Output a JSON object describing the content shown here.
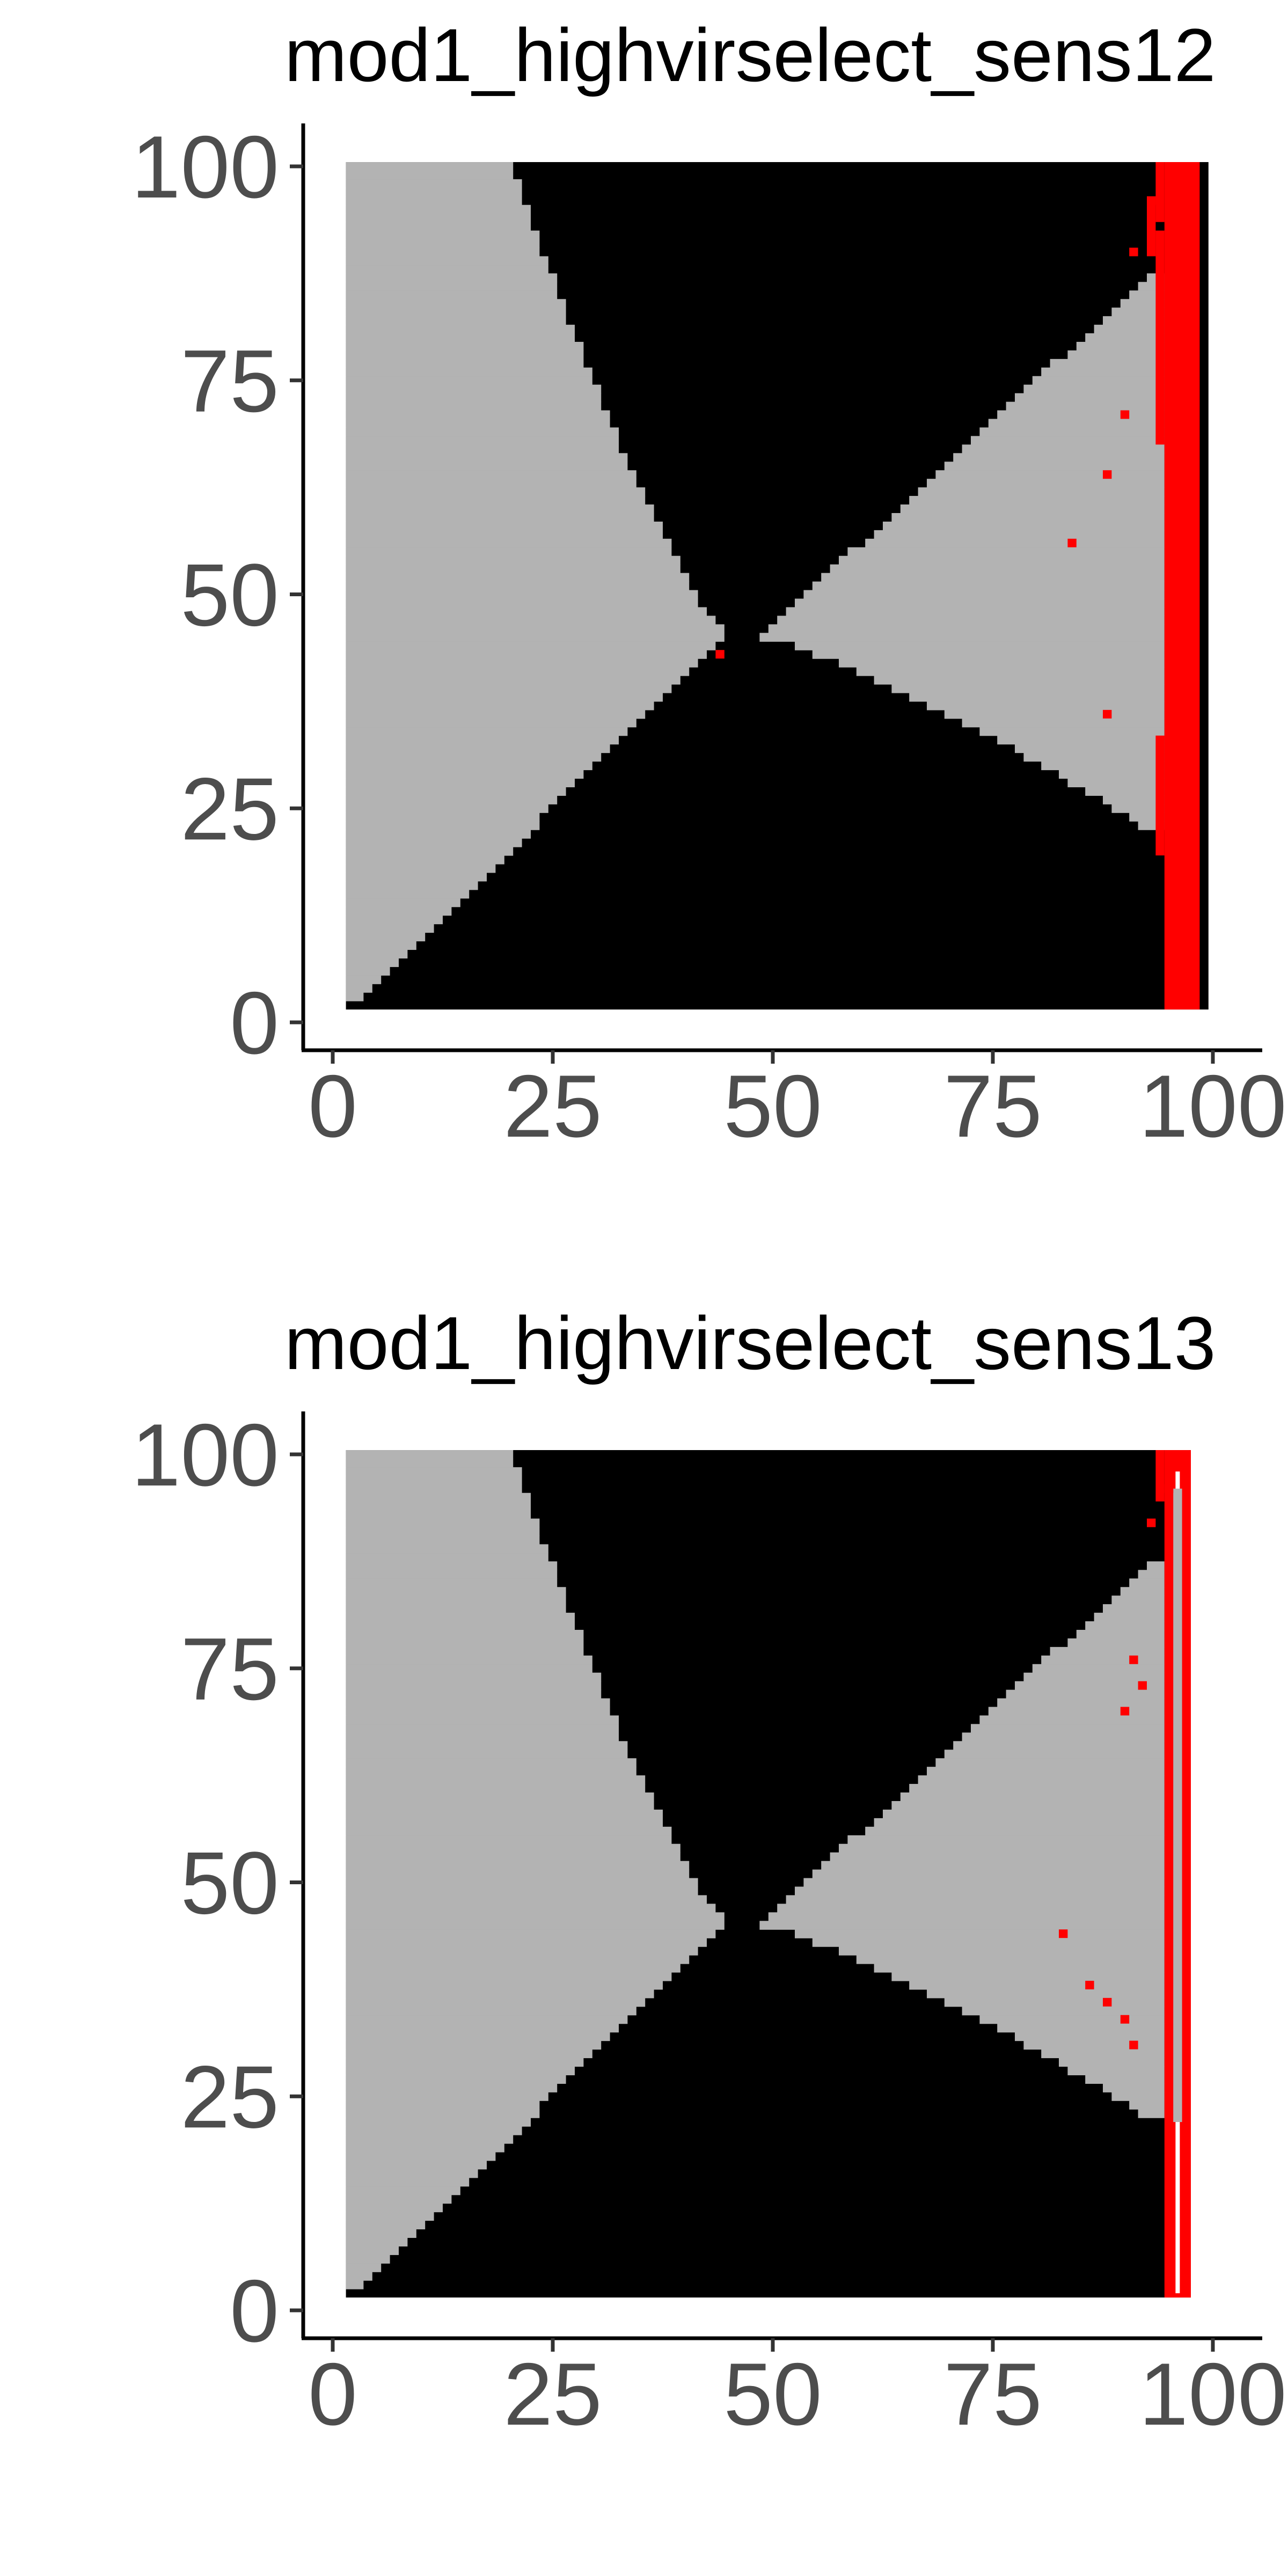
{
  "chart_data": [
    {
      "type": "heatmap",
      "title": "mod1_highvirselect_sens12",
      "xlabel": "",
      "ylabel": "",
      "xlim": [
        0,
        100
      ],
      "ylim": [
        0,
        100
      ],
      "x_ticks": [
        0,
        25,
        50,
        75,
        100
      ],
      "y_ticks": [
        0,
        25,
        50,
        75,
        100
      ],
      "x_tick_labels": [
        "0",
        "25",
        "50",
        "75",
        "100"
      ],
      "y_tick_labels": [
        "0",
        "25",
        "50",
        "75",
        "100"
      ],
      "grid": false,
      "legend": "none",
      "grid_extent": {
        "x": [
          2,
          99
        ],
        "y": [
          2,
          100
        ]
      },
      "colors": {
        "grey": "#b3b3b3",
        "black": "#000000",
        "red": "#ff0000",
        "white": "#ffffff"
      },
      "regions": [
        {
          "color": "grey",
          "x_edge": [
            [
              2,
              20
            ],
            [
              43,
              44
            ],
            [
              93,
              94
            ],
            [
              100,
              94
            ]
          ],
          "description_key": "left wedge"
        },
        {
          "color": "grey",
          "right_wedge": {
            "tip": [
              49,
              45
            ],
            "top": [
              94,
              88
            ],
            "bottom": [
              94,
              22
            ]
          }
        },
        {
          "color": "red",
          "column_x": [
            95,
            99
          ],
          "y_range": [
            20,
            100
          ]
        },
        {
          "color": "red",
          "points": [
            [
              44,
              43
            ],
            [
              84,
              56
            ],
            [
              88,
              64
            ],
            [
              90,
              71
            ],
            [
              88,
              36
            ],
            [
              93,
              96
            ],
            [
              91,
              90
            ]
          ]
        }
      ]
    },
    {
      "type": "heatmap",
      "title": "mod1_highvirselect_sens13",
      "xlabel": "",
      "ylabel": "",
      "xlim": [
        0,
        100
      ],
      "ylim": [
        0,
        100
      ],
      "x_ticks": [
        0,
        25,
        50,
        75,
        100
      ],
      "y_ticks": [
        0,
        25,
        50,
        75,
        100
      ],
      "x_tick_labels": [
        "0",
        "25",
        "50",
        "75",
        "100"
      ],
      "y_tick_labels": [
        "0",
        "25",
        "50",
        "75",
        "100"
      ],
      "grid": false,
      "legend": "none",
      "grid_extent": {
        "x": [
          2,
          97
        ],
        "y": [
          2,
          100
        ]
      },
      "colors": {
        "grey": "#b3b3b3",
        "black": "#000000",
        "red": "#ff0000",
        "white": "#ffffff"
      },
      "regions": [
        {
          "color": "grey",
          "x_edge": [
            [
              2,
              20
            ],
            [
              45,
              46
            ],
            [
              93,
              94
            ],
            [
              100,
              94
            ]
          ],
          "description_key": "left wedge"
        },
        {
          "color": "grey",
          "right_wedge": {
            "tip": [
              49,
              45
            ],
            "top": [
              94,
              88
            ],
            "bottom": [
              94,
              22
            ]
          }
        },
        {
          "color": "red",
          "column_x": [
            95,
            97
          ],
          "y_range": [
            2,
            100
          ],
          "white_stripes": true
        },
        {
          "color": "red",
          "points": [
            [
              83,
              44
            ],
            [
              86,
              38
            ],
            [
              88,
              36
            ],
            [
              90,
              34
            ],
            [
              91,
              31
            ],
            [
              90,
              70
            ],
            [
              92,
              73
            ],
            [
              91,
              76
            ],
            [
              93,
              92
            ],
            [
              95,
              96
            ]
          ]
        }
      ]
    }
  ]
}
